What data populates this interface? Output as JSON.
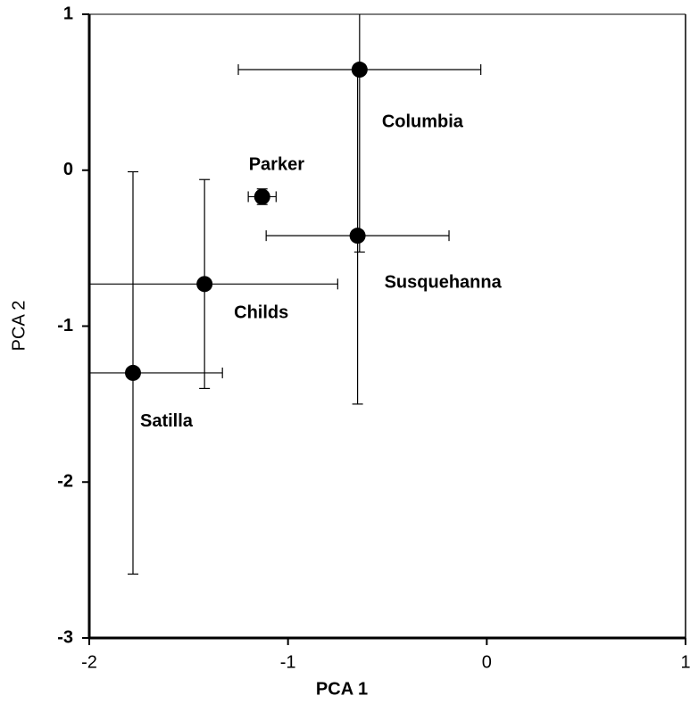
{
  "chart_data": {
    "type": "scatter",
    "x_label": "PCA 1",
    "y_label": "PCA 2",
    "xlim": [
      -2,
      1
    ],
    "ylim": [
      -3,
      1
    ],
    "xticks": [
      -2,
      -1,
      0,
      1
    ],
    "yticks": [
      -3,
      -2,
      -1,
      0,
      1
    ],
    "color": "#000000",
    "points": [
      {
        "name": "Columbia",
        "x": -0.64,
        "y": 0.645,
        "xerr": 0.61,
        "yerr": 1.17
      },
      {
        "name": "Parker",
        "x": -1.13,
        "y": -0.17,
        "xerr": 0.07,
        "yerr": 0.05
      },
      {
        "name": "Susquehanna",
        "x": -0.65,
        "y": -0.42,
        "xerr": 0.46,
        "yerr": 1.08
      },
      {
        "name": "Childs",
        "x": -1.42,
        "y": -0.73,
        "xerr": 0.67,
        "yerr": 0.67
      },
      {
        "name": "Satilla",
        "x": -1.78,
        "y": -1.3,
        "xerr": 0.45,
        "yerr": 1.29
      }
    ]
  }
}
